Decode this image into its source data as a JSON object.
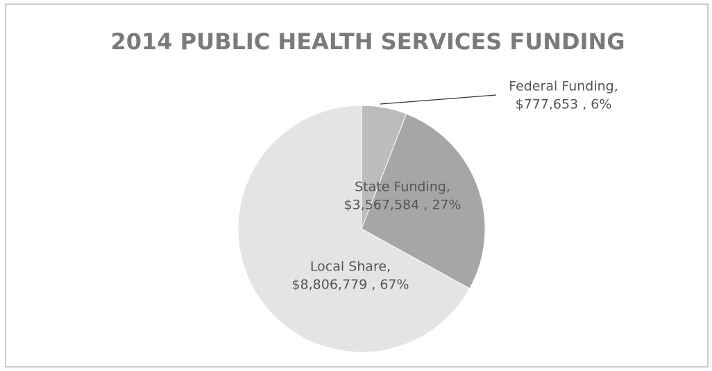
{
  "chart_data": {
    "type": "pie",
    "title": "2014 PUBLIC HEALTH SERVICES FUNDING",
    "categories": [
      "Federal Funding",
      "State Funding",
      "Local Share"
    ],
    "values": [
      777653,
      3567584,
      8806779
    ],
    "label_lines": [
      [
        "Federal Funding,",
        "$777,653 , 6%"
      ],
      [
        "State Funding,",
        "$3,567,584 , 27%"
      ],
      [
        "Local Share,",
        "$8,806,779 , 67%"
      ]
    ],
    "colors": [
      "#bcbcbc",
      "#a6a6a6",
      "#e4e4e4"
    ]
  }
}
